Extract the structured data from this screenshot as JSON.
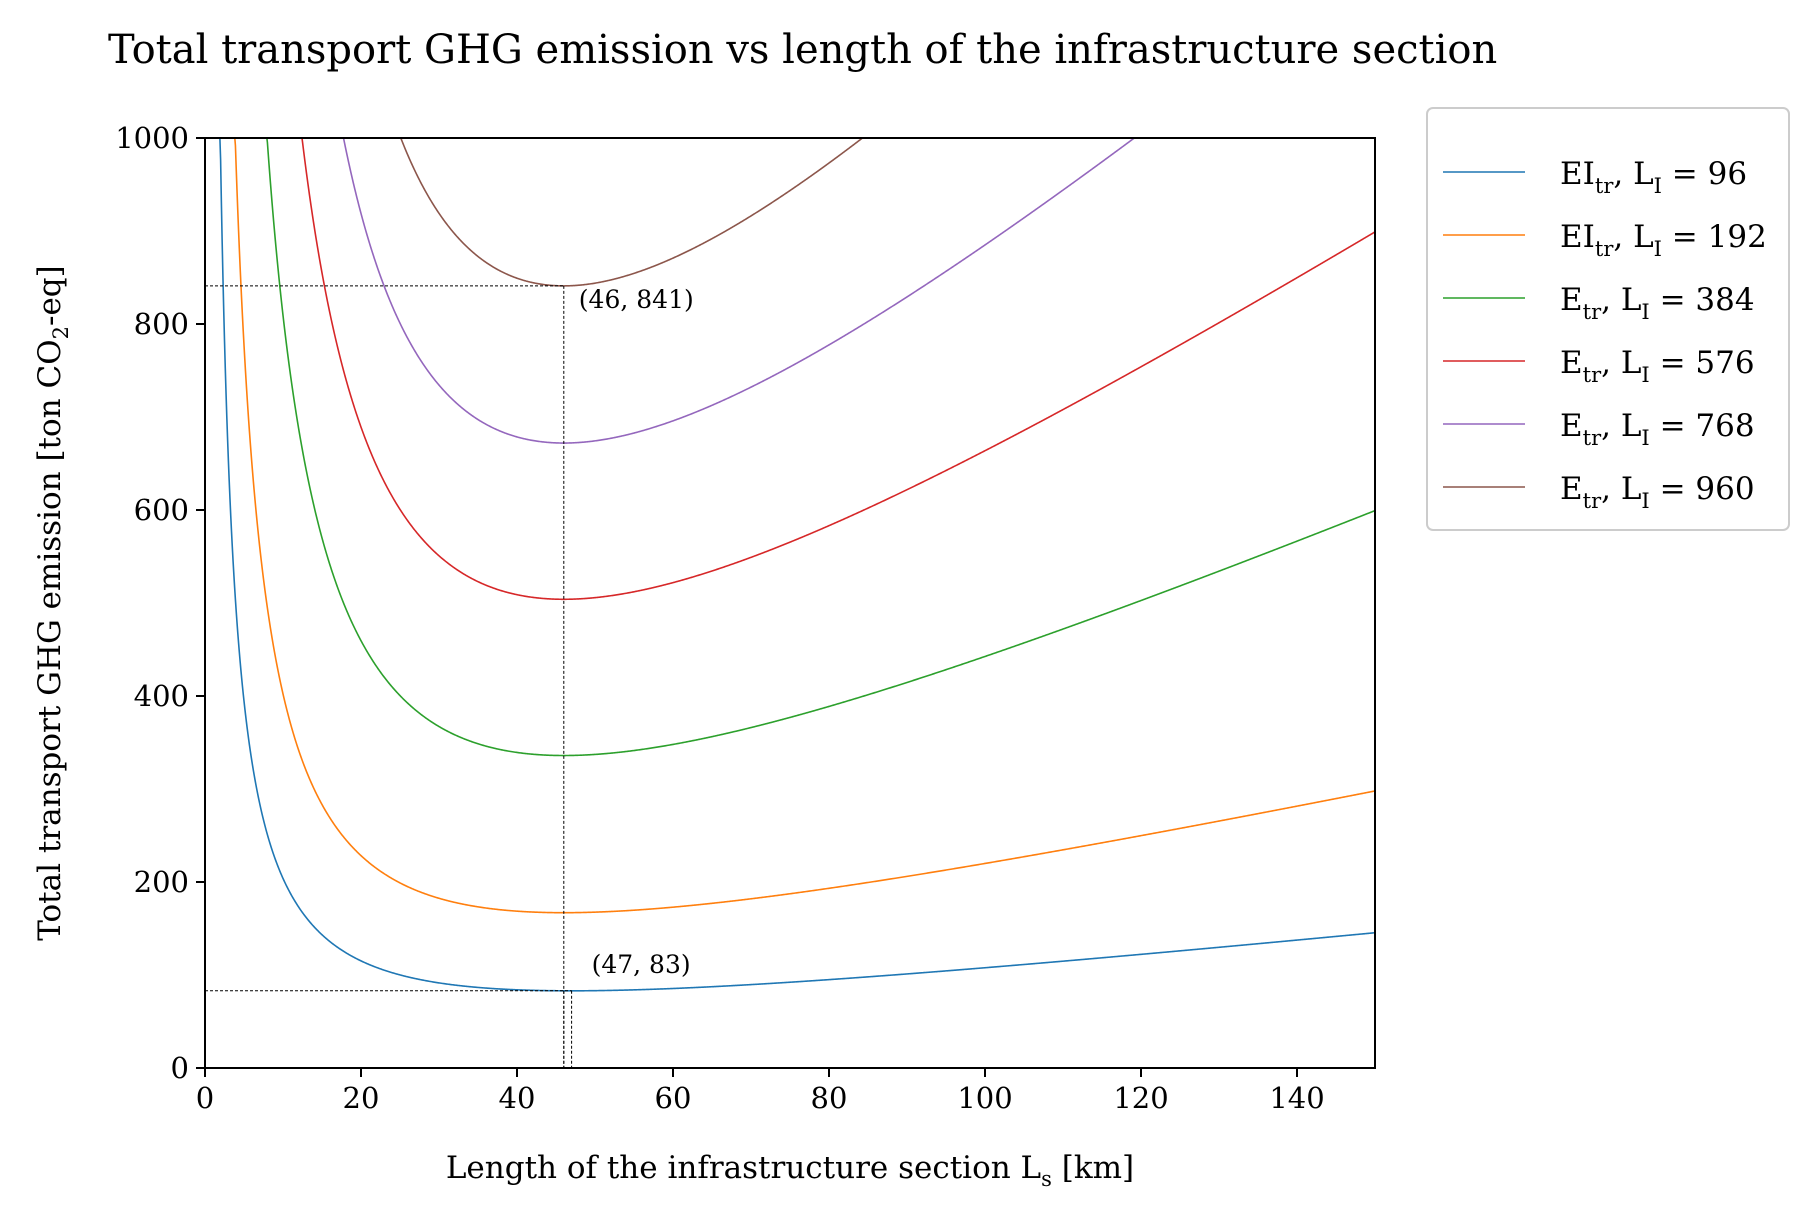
{
  "chart_data": {
    "type": "line",
    "title": "Total transport GHG emission vs length of the infrastructure section",
    "xlabel": "Length of the infrastructure section L",
    "xlabel_sub": "s",
    "xlabel_suffix": " [km]",
    "ylabel": "Total transport GHG emission [ton CO",
    "ylabel_sub": "2",
    "ylabel_suffix": "-eq]",
    "xlim": [
      0,
      150
    ],
    "ylim": [
      0,
      1000
    ],
    "xticks": [
      0,
      20,
      40,
      60,
      80,
      100,
      120,
      140
    ],
    "yticks": [
      0,
      200,
      400,
      600,
      800,
      1000
    ],
    "grid": false,
    "legend_position": "outside-top-right",
    "series": [
      {
        "name_main": "EI",
        "name_sub": "tr",
        "name_mid": ", L",
        "name_sub2": "I",
        "name_tail": " = 96",
        "L_I": 96,
        "min_x": 47,
        "min_y": 83,
        "color": "#1f77b4"
      },
      {
        "name_main": "EI",
        "name_sub": "tr",
        "name_mid": ", L",
        "name_sub2": "I",
        "name_tail": " = 192",
        "L_I": 192,
        "min_x": 46,
        "min_y": 167,
        "color": "#ff7f0e"
      },
      {
        "name_main": "E",
        "name_sub": "tr",
        "name_mid": ", L",
        "name_sub2": "I",
        "name_tail": " = 384",
        "L_I": 384,
        "min_x": 46,
        "min_y": 336,
        "color": "#2ca02c"
      },
      {
        "name_main": "E",
        "name_sub": "tr",
        "name_mid": ", L",
        "name_sub2": "I",
        "name_tail": " = 576",
        "L_I": 576,
        "min_x": 46,
        "min_y": 504,
        "color": "#d62728"
      },
      {
        "name_main": "E",
        "name_sub": "tr",
        "name_mid": ", L",
        "name_sub2": "I",
        "name_tail": " = 768",
        "L_I": 768,
        "min_x": 46,
        "min_y": 672,
        "color": "#9467bd"
      },
      {
        "name_main": "E",
        "name_sub": "tr",
        "name_mid": ", L",
        "name_sub2": "I",
        "name_tail": " = 960",
        "L_I": 960,
        "min_x": 46,
        "min_y": 841,
        "color": "#8c564b"
      }
    ],
    "annotations": [
      {
        "text": "(46, 841)",
        "x": 46,
        "y": 841
      },
      {
        "text": "(47, 83)",
        "x": 47,
        "y": 83
      }
    ]
  }
}
